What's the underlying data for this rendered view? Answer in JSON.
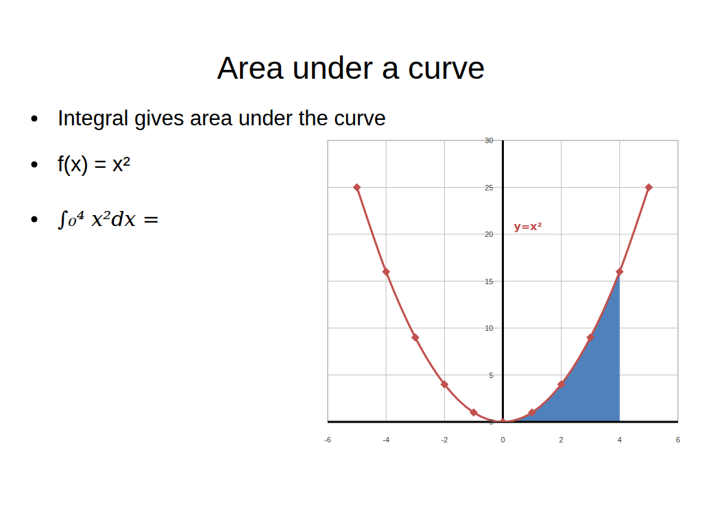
{
  "slide": {
    "title": "Area under a curve",
    "bullets": [
      "Integral gives area under the curve",
      "f(x) = x²",
      "∫₀⁴ x²dx ="
    ]
  },
  "chart_data": {
    "type": "line",
    "x": [
      -5,
      -4,
      -3,
      -2,
      -1,
      0,
      1,
      2,
      3,
      4,
      5
    ],
    "series": [
      {
        "name": "y=x²",
        "type": "line",
        "color": "#c0504d",
        "marker": "diamond",
        "values": [
          25,
          16,
          9,
          4,
          1,
          0,
          1,
          4,
          9,
          16,
          25
        ]
      },
      {
        "type": "area",
        "color": "#4f81bd",
        "values": [
          null,
          null,
          null,
          null,
          null,
          0,
          1,
          4,
          9,
          16,
          null
        ]
      }
    ],
    "xlim": [
      -6,
      6
    ],
    "xticks": [
      -6,
      -4,
      -2,
      0,
      2,
      4,
      6
    ],
    "ylim": [
      0,
      30
    ],
    "yticks": [
      0,
      5,
      10,
      15,
      20,
      25,
      30
    ],
    "grid": true
  }
}
